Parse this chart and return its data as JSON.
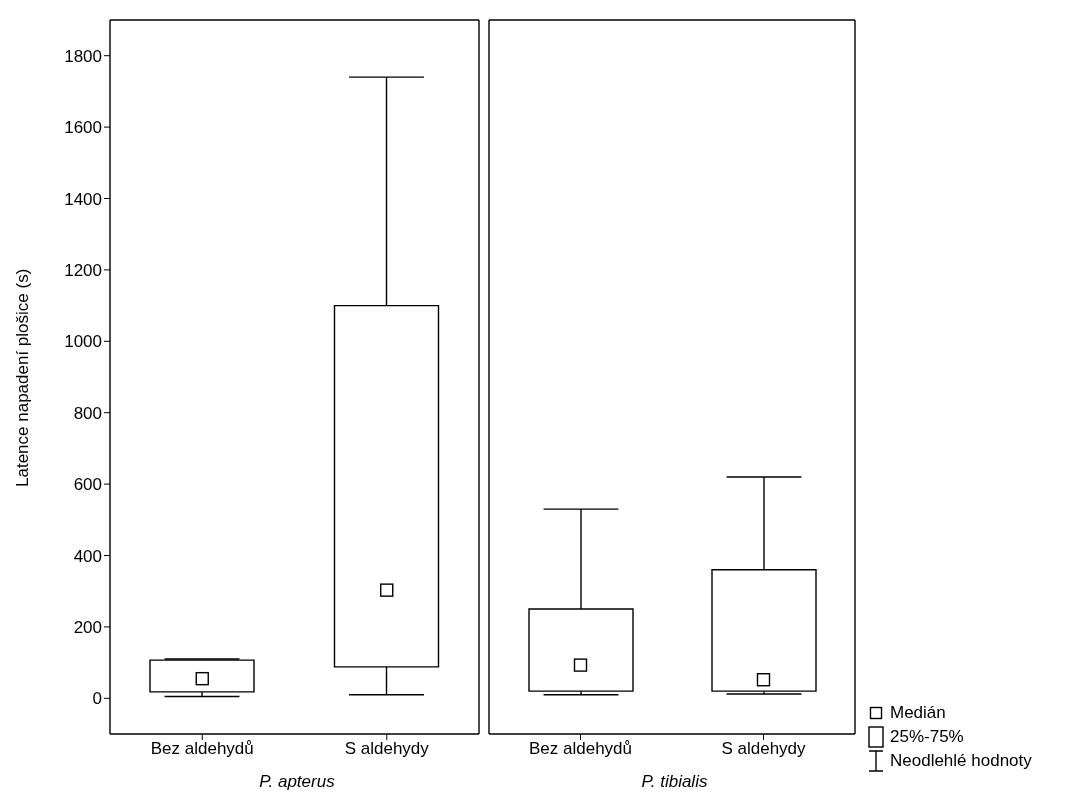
{
  "chart_data": [
    {
      "type": "box",
      "xlabel": "P. apterus",
      "ylabel": "Latence napadení plošice (s)",
      "categories": [
        "Bez aldehydů",
        "S aldehydy"
      ],
      "boxes": [
        {
          "low": 5,
          "q1": 18,
          "median": 55,
          "q3": 107,
          "high": 110
        },
        {
          "low": 10,
          "q1": 88,
          "median": 303,
          "q3": 1100,
          "high": 1740
        }
      ],
      "ylim": [
        -100,
        1900
      ],
      "yticks": [
        0,
        200,
        400,
        600,
        800,
        1000,
        1200,
        1400,
        1600,
        1800
      ],
      "grid": false,
      "marker": "square"
    },
    {
      "type": "box",
      "xlabel": "P. tibialis",
      "categories": [
        "Bez aldehydů",
        "S aldehydy"
      ],
      "boxes": [
        {
          "low": 10,
          "q1": 20,
          "median": 93,
          "q3": 250,
          "high": 530
        },
        {
          "low": 12,
          "q1": 20,
          "median": 52,
          "q3": 360,
          "high": 620
        }
      ],
      "ylim": [
        -100,
        1900
      ],
      "yticks": [
        0,
        200,
        400,
        600,
        800,
        1000,
        1200,
        1400,
        1600,
        1800
      ],
      "tick_labels": "x",
      "grid": false,
      "marker": "square",
      "annotations": [
        "Medián",
        "25%-75%",
        "Neodlehlé hodnoty"
      ]
    }
  ]
}
